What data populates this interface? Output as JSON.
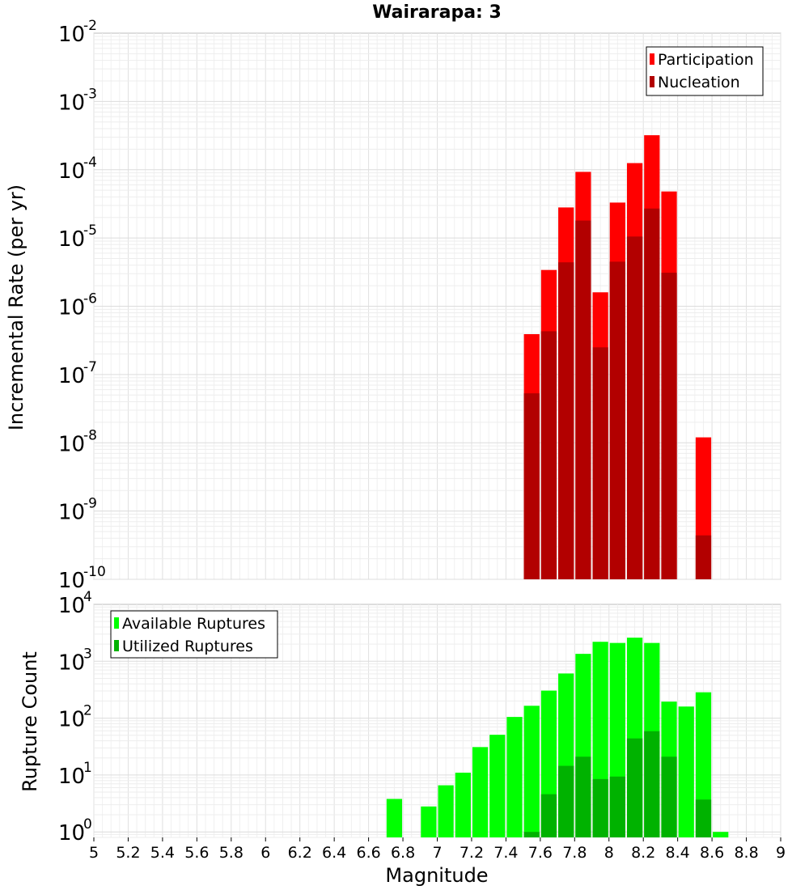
{
  "chart_data": [
    {
      "type": "bar",
      "title": "Wairarapa: 3",
      "xlabel": "",
      "ylabel": "Incremental Rate (per yr)",
      "yscale": "log",
      "ylim": [
        1e-10,
        0.01
      ],
      "xlim": [
        5.0,
        9.0
      ],
      "bar_width": 0.1,
      "y_ticks": [
        {
          "base": "10",
          "exp": "-2"
        },
        {
          "base": "10",
          "exp": "-3"
        },
        {
          "base": "10",
          "exp": "-4"
        },
        {
          "base": "10",
          "exp": "-5"
        },
        {
          "base": "10",
          "exp": "-6"
        },
        {
          "base": "10",
          "exp": "-7"
        },
        {
          "base": "10",
          "exp": "-8"
        },
        {
          "base": "10",
          "exp": "-9"
        },
        {
          "base": "10",
          "exp": "-10"
        }
      ],
      "legend": {
        "position": "top-right"
      },
      "series": [
        {
          "name": "Participation",
          "color": "#ff0000",
          "points": [
            {
              "x": 7.55,
              "y": 3.9e-07
            },
            {
              "x": 7.65,
              "y": 3.4e-06
            },
            {
              "x": 7.75,
              "y": 2.8e-05
            },
            {
              "x": 7.85,
              "y": 9.3e-05
            },
            {
              "x": 7.95,
              "y": 1.6e-06
            },
            {
              "x": 8.05,
              "y": 3.3e-05
            },
            {
              "x": 8.15,
              "y": 0.000125
            },
            {
              "x": 8.25,
              "y": 0.00032
            },
            {
              "x": 8.35,
              "y": 4.8e-05
            },
            {
              "x": 8.55,
              "y": 1.2e-08
            }
          ]
        },
        {
          "name": "Nucleation",
          "color": "#b20000",
          "points": [
            {
              "x": 7.55,
              "y": 5.3e-08
            },
            {
              "x": 7.65,
              "y": 4.3e-07
            },
            {
              "x": 7.75,
              "y": 4.4e-06
            },
            {
              "x": 7.85,
              "y": 1.8e-05
            },
            {
              "x": 7.95,
              "y": 2.5e-07
            },
            {
              "x": 8.05,
              "y": 4.5e-06
            },
            {
              "x": 8.15,
              "y": 1.05e-05
            },
            {
              "x": 8.25,
              "y": 2.7e-05
            },
            {
              "x": 8.35,
              "y": 3.1e-06
            },
            {
              "x": 8.55,
              "y": 4.4e-10
            }
          ]
        }
      ]
    },
    {
      "type": "bar",
      "title": "",
      "xlabel": "Magnitude",
      "ylabel": "Rupture Count",
      "yscale": "log",
      "ylim": [
        0.8,
        10000
      ],
      "xlim": [
        5.0,
        9.0
      ],
      "bar_width": 0.1,
      "x_ticks": [
        "5",
        "5.2",
        "5.4",
        "5.6",
        "5.8",
        "6",
        "6.2",
        "6.4",
        "6.6",
        "6.8",
        "7",
        "7.2",
        "7.4",
        "7.6",
        "7.8",
        "8",
        "8.2",
        "8.4",
        "8.6",
        "8.8",
        "9"
      ],
      "y_ticks": [
        {
          "base": "10",
          "exp": "4"
        },
        {
          "base": "10",
          "exp": "3"
        },
        {
          "base": "10",
          "exp": "2"
        },
        {
          "base": "10",
          "exp": "1"
        },
        {
          "base": "10",
          "exp": "0"
        }
      ],
      "legend": {
        "position": "top-left"
      },
      "series": [
        {
          "name": "Available Ruptures",
          "color": "#00ff00",
          "points": [
            {
              "x": 6.75,
              "y": 3.8
            },
            {
              "x": 6.95,
              "y": 2.8
            },
            {
              "x": 7.05,
              "y": 6.6
            },
            {
              "x": 7.15,
              "y": 11
            },
            {
              "x": 7.25,
              "y": 31
            },
            {
              "x": 7.35,
              "y": 51
            },
            {
              "x": 7.45,
              "y": 105
            },
            {
              "x": 7.55,
              "y": 165
            },
            {
              "x": 7.65,
              "y": 305
            },
            {
              "x": 7.75,
              "y": 610
            },
            {
              "x": 7.85,
              "y": 1350
            },
            {
              "x": 7.95,
              "y": 2200
            },
            {
              "x": 8.05,
              "y": 2100
            },
            {
              "x": 8.15,
              "y": 2600
            },
            {
              "x": 8.25,
              "y": 2100
            },
            {
              "x": 8.35,
              "y": 195
            },
            {
              "x": 8.45,
              "y": 160
            },
            {
              "x": 8.55,
              "y": 285
            },
            {
              "x": 8.65,
              "y": 1.0
            }
          ]
        },
        {
          "name": "Utilized Ruptures",
          "color": "#00b200",
          "points": [
            {
              "x": 7.55,
              "y": 1.0
            },
            {
              "x": 7.65,
              "y": 4.6
            },
            {
              "x": 7.75,
              "y": 14.5
            },
            {
              "x": 7.85,
              "y": 21
            },
            {
              "x": 7.95,
              "y": 8.5
            },
            {
              "x": 8.05,
              "y": 9.4
            },
            {
              "x": 8.15,
              "y": 44
            },
            {
              "x": 8.25,
              "y": 59
            },
            {
              "x": 8.35,
              "y": 21
            },
            {
              "x": 8.55,
              "y": 3.7
            }
          ]
        }
      ]
    }
  ]
}
